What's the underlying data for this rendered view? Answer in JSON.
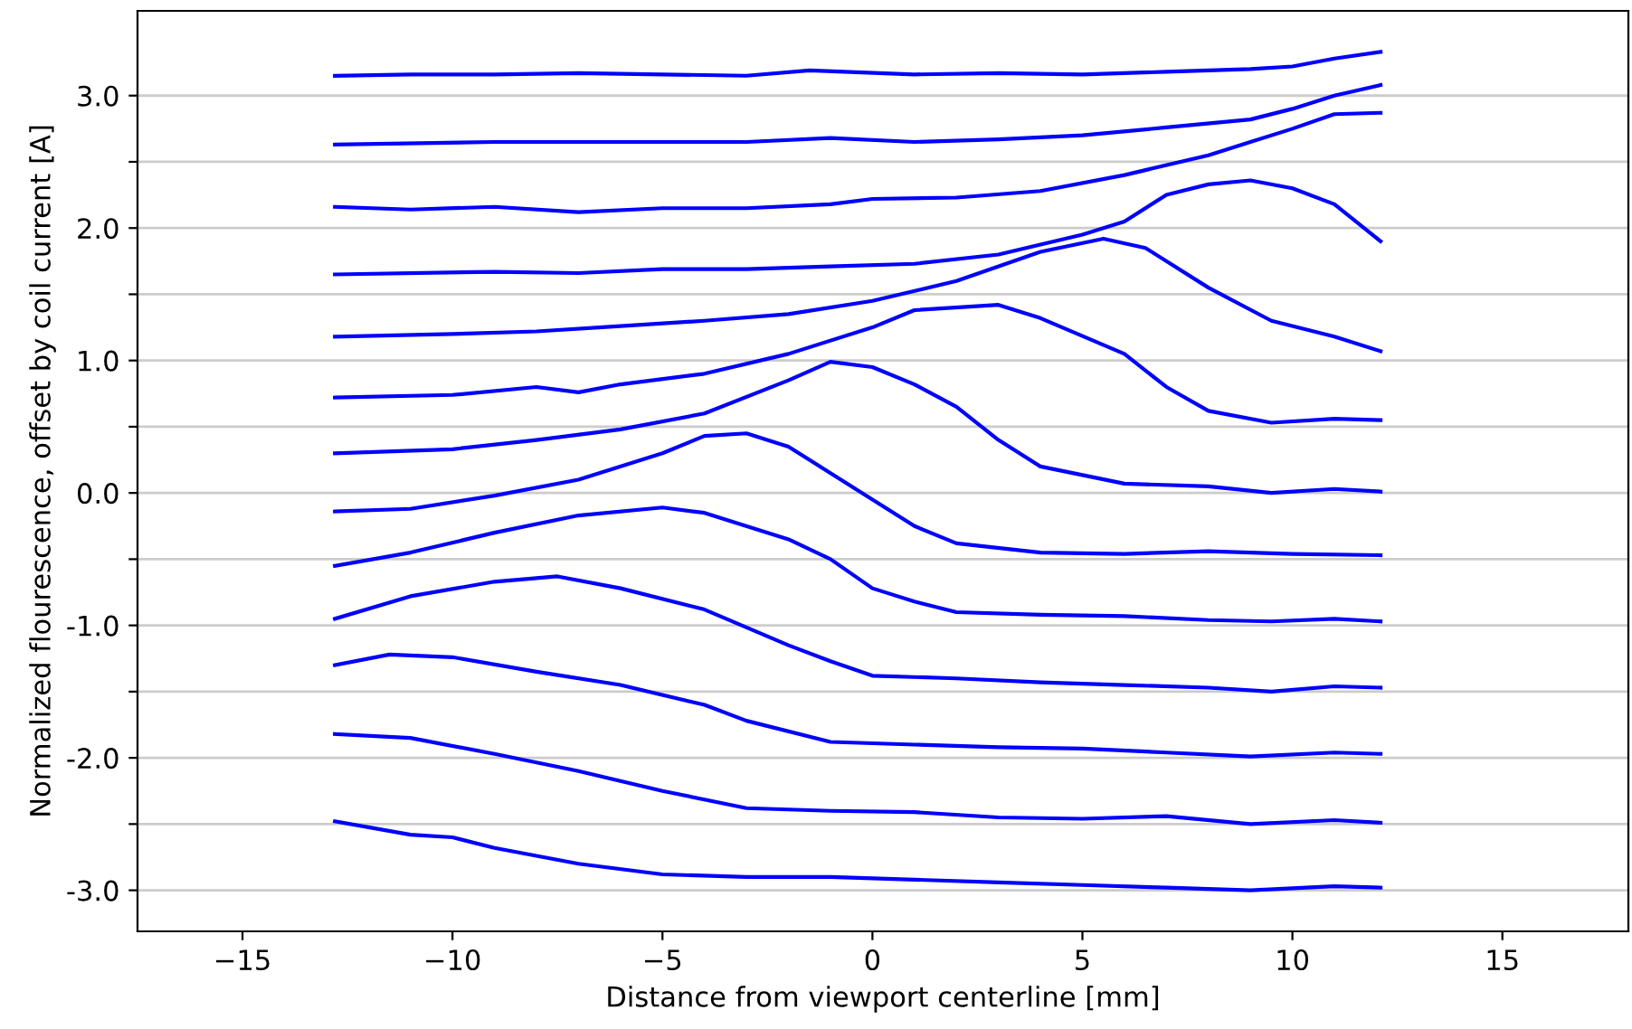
{
  "chart_data": {
    "type": "line",
    "xlabel": "Distance from viewport centerline [mm]",
    "ylabel": "Normalized flourescence, offset by coil current [A]",
    "xlim": [
      -17.5,
      18
    ],
    "ylim": [
      -3.31,
      3.64
    ],
    "xticks": [
      {
        "value": -15,
        "label": "−15"
      },
      {
        "value": -10,
        "label": "−10"
      },
      {
        "value": -5,
        "label": "−5"
      },
      {
        "value": 0,
        "label": "0"
      },
      {
        "value": 5,
        "label": "5"
      },
      {
        "value": 10,
        "label": "10"
      },
      {
        "value": 15,
        "label": "15"
      }
    ],
    "yticks": [
      {
        "value": -3,
        "label": "-3.0"
      },
      {
        "value": -2.5,
        "label": null
      },
      {
        "value": -2,
        "label": "-2.0"
      },
      {
        "value": -1.5,
        "label": null
      },
      {
        "value": -1,
        "label": "-1.0"
      },
      {
        "value": -0.5,
        "label": null
      },
      {
        "value": 0,
        "label": "0.0"
      },
      {
        "value": 0.5,
        "label": null
      },
      {
        "value": 1,
        "label": "1.0"
      },
      {
        "value": 1.5,
        "label": null
      },
      {
        "value": 2,
        "label": "2.0"
      },
      {
        "value": 2.5,
        "label": null
      },
      {
        "value": 3,
        "label": "3.0"
      }
    ],
    "grid": "y",
    "marker": "none",
    "line_style": "solid",
    "series": [
      {
        "color": "#0000ff",
        "x": [
          -12.8,
          -11,
          -9,
          -7,
          -5,
          -3,
          -1.5,
          1,
          3,
          5,
          7,
          9,
          10,
          11,
          12.1
        ],
        "values": [
          3.15,
          3.16,
          3.16,
          3.17,
          3.16,
          3.15,
          3.19,
          3.16,
          3.17,
          3.16,
          3.18,
          3.2,
          3.22,
          3.28,
          3.33
        ]
      },
      {
        "color": "#0000ff",
        "x": [
          -12.8,
          -9,
          -5,
          -3,
          -1,
          1,
          3,
          5,
          7,
          9,
          10,
          11,
          12.1
        ],
        "values": [
          2.63,
          2.65,
          2.65,
          2.65,
          2.68,
          2.65,
          2.67,
          2.7,
          2.76,
          2.82,
          2.9,
          3.0,
          3.08
        ]
      },
      {
        "color": "#0000ff",
        "x": [
          -12.8,
          -11,
          -9,
          -7,
          -5,
          -3,
          -1,
          0,
          2,
          4,
          6,
          8,
          9,
          10,
          11,
          12.1
        ],
        "values": [
          2.16,
          2.14,
          2.16,
          2.12,
          2.15,
          2.15,
          2.18,
          2.22,
          2.23,
          2.28,
          2.4,
          2.55,
          2.65,
          2.75,
          2.86,
          2.87
        ]
      },
      {
        "color": "#0000ff",
        "x": [
          -12.8,
          -9,
          -7,
          -5,
          -3,
          -1,
          1,
          3,
          5,
          6,
          7,
          8,
          9,
          10,
          11,
          12.1
        ],
        "values": [
          1.65,
          1.67,
          1.66,
          1.69,
          1.69,
          1.71,
          1.73,
          1.8,
          1.95,
          2.05,
          2.25,
          2.33,
          2.36,
          2.3,
          2.18,
          1.9
        ]
      },
      {
        "color": "#0000ff",
        "x": [
          -12.8,
          -10,
          -8,
          -6,
          -4,
          -2,
          0,
          2,
          4,
          5.5,
          6.5,
          8,
          9.5,
          11,
          12.1
        ],
        "values": [
          1.18,
          1.2,
          1.22,
          1.26,
          1.3,
          1.35,
          1.45,
          1.6,
          1.82,
          1.92,
          1.85,
          1.55,
          1.3,
          1.18,
          1.07
        ]
      },
      {
        "color": "#0000ff",
        "x": [
          -12.8,
          -10,
          -8,
          -7,
          -6,
          -4,
          -2,
          0,
          1,
          3,
          4,
          6,
          7,
          8,
          9.5,
          11,
          12.1
        ],
        "values": [
          0.72,
          0.74,
          0.8,
          0.76,
          0.82,
          0.9,
          1.05,
          1.25,
          1.38,
          1.42,
          1.32,
          1.05,
          0.8,
          0.62,
          0.53,
          0.56,
          0.55
        ]
      },
      {
        "color": "#0000ff",
        "x": [
          -12.8,
          -10,
          -8,
          -6,
          -4,
          -2,
          -1,
          0,
          1,
          2,
          3,
          4,
          6,
          8,
          9.5,
          11,
          12.1
        ],
        "values": [
          0.3,
          0.33,
          0.4,
          0.48,
          0.6,
          0.85,
          0.99,
          0.95,
          0.82,
          0.65,
          0.4,
          0.2,
          0.07,
          0.05,
          0.0,
          0.03,
          0.01
        ]
      },
      {
        "color": "#0000ff",
        "x": [
          -12.8,
          -11,
          -9,
          -7,
          -5,
          -4,
          -3,
          -2,
          -1,
          0,
          1,
          2,
          4,
          6,
          8,
          10,
          12.1
        ],
        "values": [
          -0.14,
          -0.12,
          -0.02,
          0.1,
          0.3,
          0.43,
          0.45,
          0.35,
          0.15,
          -0.05,
          -0.25,
          -0.38,
          -0.45,
          -0.46,
          -0.44,
          -0.46,
          -0.47
        ]
      },
      {
        "color": "#0000ff",
        "x": [
          -12.8,
          -11,
          -9,
          -7,
          -5,
          -4,
          -2,
          -1,
          0,
          1,
          2,
          4,
          6,
          8,
          9.5,
          11,
          12.1
        ],
        "values": [
          -0.55,
          -0.45,
          -0.3,
          -0.17,
          -0.11,
          -0.15,
          -0.35,
          -0.5,
          -0.72,
          -0.82,
          -0.9,
          -0.92,
          -0.93,
          -0.96,
          -0.97,
          -0.95,
          -0.97
        ]
      },
      {
        "color": "#0000ff",
        "x": [
          -12.8,
          -11,
          -9,
          -7.5,
          -6,
          -4,
          -2,
          -1,
          0,
          2,
          4,
          6,
          8,
          9.5,
          11,
          12.1
        ],
        "values": [
          -0.95,
          -0.78,
          -0.67,
          -0.63,
          -0.72,
          -0.88,
          -1.15,
          -1.27,
          -1.38,
          -1.4,
          -1.43,
          -1.45,
          -1.47,
          -1.5,
          -1.46,
          -1.47
        ]
      },
      {
        "color": "#0000ff",
        "x": [
          -12.8,
          -11.5,
          -10,
          -8,
          -6,
          -4,
          -3,
          -1,
          1,
          3,
          5,
          7,
          9,
          11,
          12.1
        ],
        "values": [
          -1.3,
          -1.22,
          -1.24,
          -1.35,
          -1.45,
          -1.6,
          -1.72,
          -1.88,
          -1.9,
          -1.92,
          -1.93,
          -1.96,
          -1.99,
          -1.96,
          -1.97
        ]
      },
      {
        "color": "#0000ff",
        "x": [
          -12.8,
          -11,
          -9,
          -7,
          -5,
          -3,
          -1,
          1,
          3,
          5,
          7,
          9,
          11,
          12.1
        ],
        "values": [
          -1.82,
          -1.85,
          -1.97,
          -2.1,
          -2.25,
          -2.38,
          -2.4,
          -2.41,
          -2.45,
          -2.46,
          -2.44,
          -2.5,
          -2.47,
          -2.49
        ]
      },
      {
        "color": "#0000ff",
        "x": [
          -12.8,
          -11,
          -10,
          -9,
          -7,
          -5,
          -3,
          -1,
          1,
          3,
          5,
          7,
          9,
          11,
          12.1
        ],
        "values": [
          -2.48,
          -2.58,
          -2.6,
          -2.68,
          -2.8,
          -2.88,
          -2.9,
          -2.9,
          -2.92,
          -2.94,
          -2.96,
          -2.98,
          -3.0,
          -2.97,
          -2.98
        ]
      }
    ]
  }
}
